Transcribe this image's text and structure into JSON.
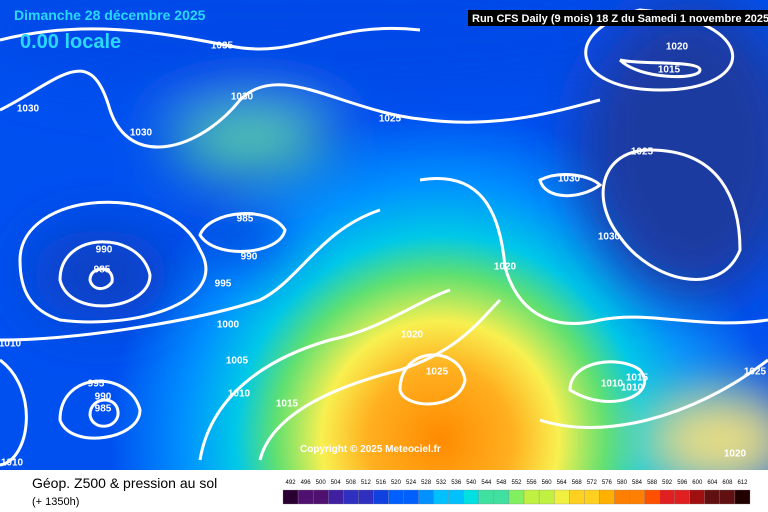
{
  "header": {
    "title": "Dimanche 28 décembre 2025",
    "time": "0.00 locale",
    "run": "Run CFS Daily (9 mois) 18 Z du Samedi 1 novembre 2025"
  },
  "isobar_labels": [
    "1035",
    "1030",
    "1030",
    "1030",
    "1025",
    "1020",
    "1015",
    "1025",
    "1030",
    "1030",
    "1020",
    "985",
    "990",
    "990",
    "985",
    "995",
    "1000",
    "1005",
    "1010",
    "1015",
    "1010",
    "995",
    "990",
    "985",
    "1010",
    "1020",
    "1025",
    "1015",
    "1010",
    "1010",
    "1025",
    "1020"
  ],
  "copyright": "Copyright © 2025 Meteociel.fr",
  "legend": {
    "title": "Géop. Z500 & pression au sol",
    "lead": "(+ 1350h)",
    "scale": [
      "492",
      "496",
      "500",
      "504",
      "508",
      "512",
      "516",
      "520",
      "524",
      "528",
      "532",
      "536",
      "540",
      "544",
      "548",
      "552",
      "556",
      "560",
      "564",
      "568",
      "572",
      "576",
      "580",
      "584",
      "588",
      "592",
      "596",
      "600",
      "604",
      "608",
      "612"
    ]
  }
}
